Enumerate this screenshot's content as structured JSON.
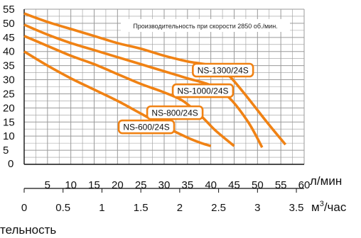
{
  "chart_data": {
    "type": "line",
    "title": "Производительность при скорости 2850 об./мин.",
    "footer_text": "тельность",
    "x_unit_primary": "л/мин",
    "x_unit_secondary_base": "м",
    "x_unit_secondary_sup": "3",
    "x_unit_secondary_tail": "/час",
    "xlim": [
      0,
      60
    ],
    "ylim": [
      0,
      55
    ],
    "x_ticks": [
      "5",
      "10",
      "15",
      "20",
      "25",
      "30",
      "35",
      "40",
      "45",
      "50",
      "55",
      "60"
    ],
    "y_ticks": [
      "5",
      "10",
      "15",
      "20",
      "25",
      "30",
      "35",
      "40",
      "45",
      "50",
      "55"
    ],
    "y_zero_label": "0",
    "x2_ticks": [
      "0",
      "0.5",
      "1",
      "1.5",
      "2",
      "2.5",
      "3",
      "3.5"
    ],
    "grid": true,
    "colors": {
      "series": "#f08214",
      "grid": "#9a9a9a",
      "axis": "#111111",
      "label_bg": "#ffffff"
    },
    "series": [
      {
        "name": "NS-600/24S",
        "x": [
          0,
          5,
          10,
          15,
          20,
          25,
          30,
          35,
          38,
          40
        ],
        "y": [
          40,
          35,
          30.5,
          26.5,
          22.5,
          18,
          13.5,
          9.5,
          7.5,
          6.5
        ]
      },
      {
        "name": "NS-800/24S",
        "x": [
          0,
          5,
          10,
          15,
          20,
          25,
          30,
          34,
          38,
          41,
          45
        ],
        "y": [
          45.5,
          42,
          38.5,
          35.5,
          32,
          28.5,
          25.5,
          22.5,
          17,
          12,
          6.5
        ]
      },
      {
        "name": "NS-1000/24S",
        "x": [
          0,
          5,
          10,
          15,
          20,
          25,
          30,
          35,
          40,
          44,
          48,
          51
        ],
        "y": [
          49.5,
          46,
          43,
          40.5,
          38,
          35.5,
          33,
          30.5,
          28,
          23.5,
          15,
          6
        ]
      },
      {
        "name": "NS-1300/24S",
        "x": [
          0,
          5,
          10,
          15,
          20,
          25,
          30,
          35,
          40,
          43.5,
          47,
          52,
          56
        ],
        "y": [
          53.5,
          50.5,
          48,
          45.5,
          43,
          41,
          38.5,
          36.5,
          35,
          32,
          25.5,
          15,
          7
        ]
      }
    ]
  }
}
